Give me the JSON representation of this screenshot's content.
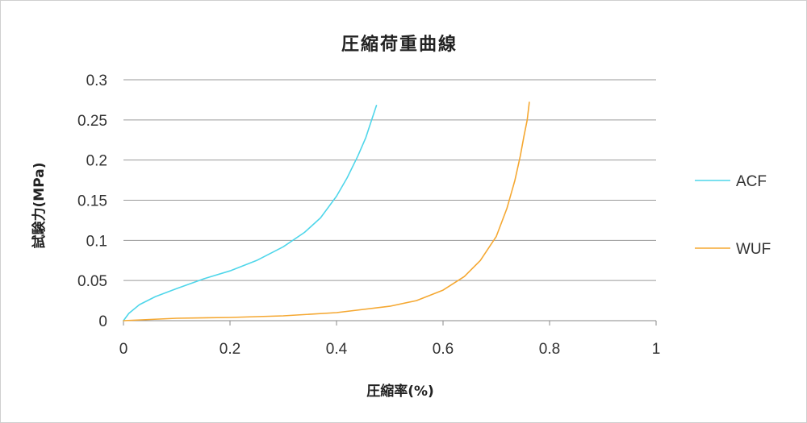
{
  "chart_data": {
    "type": "line",
    "title": "圧縮荷重曲線",
    "xlabel": "圧縮率(%)",
    "ylabel": "試験力(MPa)",
    "xlim": [
      0,
      1
    ],
    "ylim": [
      0,
      0.3
    ],
    "x_ticks": [
      "0",
      "0.2",
      "0.4",
      "0.6",
      "0.8",
      "1"
    ],
    "y_ticks": [
      "0",
      "0.05",
      "0.1",
      "0.15",
      "0.2",
      "0.25",
      "0.3"
    ],
    "grid": "horizontal",
    "legend_position": "right",
    "series": [
      {
        "name": "ACF",
        "color": "#4fd6ea",
        "points": [
          [
            0,
            0
          ],
          [
            0.01,
            0.009
          ],
          [
            0.03,
            0.02
          ],
          [
            0.06,
            0.03
          ],
          [
            0.1,
            0.04
          ],
          [
            0.15,
            0.052
          ],
          [
            0.2,
            0.062
          ],
          [
            0.25,
            0.075
          ],
          [
            0.3,
            0.092
          ],
          [
            0.34,
            0.11
          ],
          [
            0.37,
            0.128
          ],
          [
            0.4,
            0.155
          ],
          [
            0.42,
            0.178
          ],
          [
            0.44,
            0.205
          ],
          [
            0.455,
            0.228
          ],
          [
            0.465,
            0.248
          ],
          [
            0.475,
            0.268
          ]
        ]
      },
      {
        "name": "WUF",
        "color": "#f5a832",
        "points": [
          [
            0,
            0
          ],
          [
            0.1,
            0.003
          ],
          [
            0.2,
            0.004
          ],
          [
            0.3,
            0.006
          ],
          [
            0.4,
            0.01
          ],
          [
            0.5,
            0.018
          ],
          [
            0.55,
            0.025
          ],
          [
            0.6,
            0.038
          ],
          [
            0.64,
            0.055
          ],
          [
            0.67,
            0.075
          ],
          [
            0.7,
            0.105
          ],
          [
            0.72,
            0.14
          ],
          [
            0.735,
            0.175
          ],
          [
            0.745,
            0.205
          ],
          [
            0.752,
            0.23
          ],
          [
            0.758,
            0.25
          ],
          [
            0.762,
            0.272
          ]
        ]
      }
    ]
  }
}
